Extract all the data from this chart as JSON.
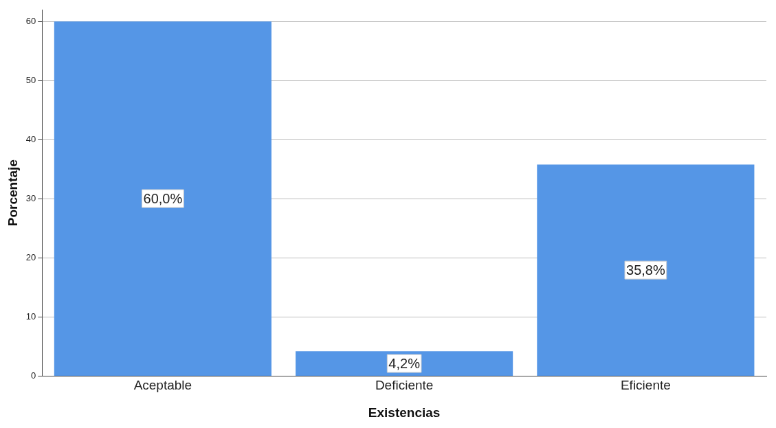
{
  "chart_data": {
    "type": "bar",
    "xlabel": "Existencias",
    "ylabel": "Porcentaje",
    "categories": [
      "Aceptable",
      "Deficiente",
      "Eficiente"
    ],
    "values": [
      60.0,
      4.2,
      35.8
    ],
    "color": "#5596e6",
    "value_labels": [
      "60,0%",
      "4,2%",
      "35,8%"
    ],
    "ylim": [
      0,
      62
    ],
    "yticks": [
      0,
      10,
      20,
      30,
      40,
      50,
      60
    ],
    "grid": "y",
    "legend": false
  }
}
